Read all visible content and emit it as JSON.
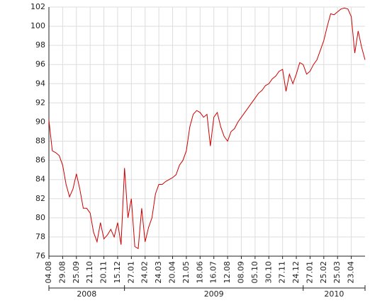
{
  "chart_data": {
    "type": "line",
    "categories": [
      "04.08",
      null,
      null,
      null,
      "29.08",
      null,
      null,
      null,
      "25.09",
      null,
      null,
      null,
      "21.10",
      null,
      null,
      null,
      "20.11",
      null,
      null,
      null,
      "15.12",
      null,
      null,
      null,
      "27.01",
      null,
      null,
      null,
      "24.02",
      null,
      null,
      null,
      "24.03",
      null,
      null,
      null,
      "20.04",
      null,
      null,
      null,
      "21.05",
      null,
      null,
      null,
      "18.06",
      null,
      null,
      null,
      "16.07",
      null,
      null,
      null,
      "12.08",
      null,
      null,
      null,
      "08.09",
      null,
      null,
      null,
      "05.10",
      null,
      null,
      null,
      "30.10",
      null,
      null,
      null,
      "27.11",
      null,
      null,
      null,
      "24.12",
      null,
      null,
      null,
      "27.01",
      null,
      null,
      null,
      "25.02",
      null,
      null,
      null,
      "25.03",
      null,
      null,
      null,
      "23.04",
      null,
      null,
      null,
      null
    ],
    "years": [
      "2008",
      "2009",
      "2010"
    ],
    "series": [
      {
        "color": "#cc0000",
        "values": [
          90.2,
          87,
          86.8,
          86.5,
          85.5,
          83.5,
          82.2,
          83,
          84.6,
          83,
          81,
          81,
          80.5,
          78.5,
          77.5,
          79.5,
          77.8,
          78.2,
          78.8,
          78,
          79.5,
          77.2,
          85.2,
          80,
          82,
          77,
          76.8,
          81,
          77.5,
          79,
          80,
          82.5,
          83.5,
          83.5,
          83.8,
          84,
          84.2,
          84.5,
          85.5,
          86,
          87,
          89.5,
          90.8,
          91.2,
          91,
          90.5,
          90.8,
          87.5,
          90.5,
          91,
          89.5,
          88.5,
          88,
          89,
          89.3,
          90,
          90.5,
          91,
          91.5,
          92,
          92.5,
          93,
          93.3,
          93.8,
          94,
          94.5,
          94.8,
          95.3,
          95.5,
          93.2,
          95,
          94,
          95,
          96.2,
          96,
          95,
          95.3,
          96,
          96.5,
          97.5,
          98.5,
          100,
          101.3,
          101.2,
          101.5,
          101.8,
          101.9,
          101.8,
          101,
          97.2,
          99.5,
          97.8,
          96.5
        ]
      }
    ],
    "ylim": [
      76,
      102
    ],
    "yticks": [
      76,
      78,
      80,
      82,
      84,
      86,
      88,
      90,
      92,
      94,
      96,
      98,
      100,
      102
    ],
    "grid": true
  }
}
